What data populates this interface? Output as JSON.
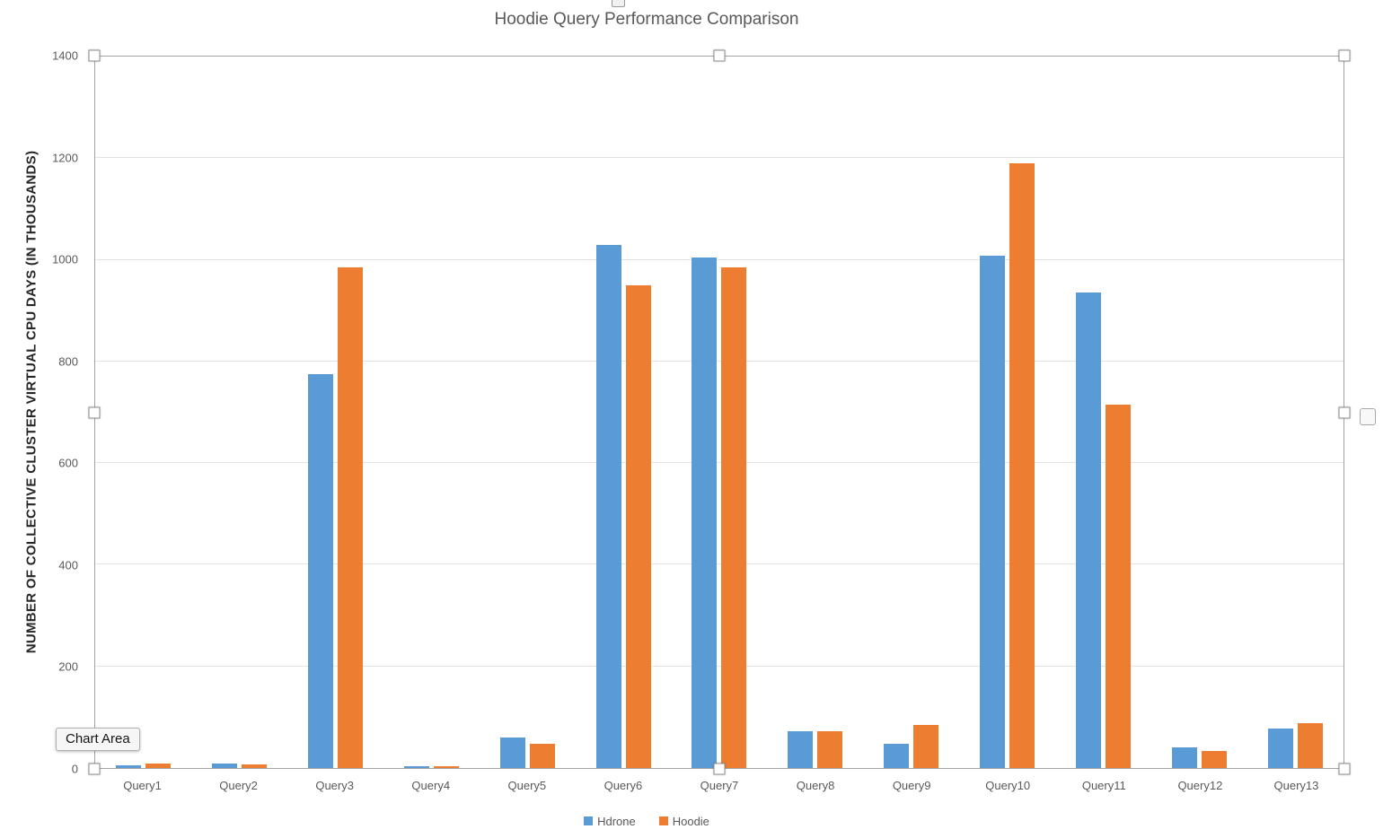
{
  "chart_data": {
    "type": "bar",
    "title": "Hoodie Query Performance Comparison",
    "xlabel": "",
    "ylabel": "NUMBER OF COLLECTIVE CLUSTER VIRTUAL CPU DAYS (IN THOUSANDS)",
    "categories": [
      "Query1",
      "Query2",
      "Query3",
      "Query4",
      "Query5",
      "Query6",
      "Query7",
      "Query8",
      "Query9",
      "Query10",
      "Query11",
      "Query12",
      "Query13"
    ],
    "series": [
      {
        "name": "Hdrone",
        "color": "#5B9BD5",
        "values": [
          5,
          8,
          775,
          3,
          60,
          1030,
          1005,
          72,
          48,
          1008,
          935,
          40,
          78
        ]
      },
      {
        "name": "Hoodie",
        "color": "#ED7D31",
        "values": [
          8,
          7,
          985,
          4,
          48,
          950,
          985,
          72,
          85,
          1190,
          715,
          33,
          88
        ]
      }
    ],
    "ylim": [
      0,
      1400
    ],
    "yticks": [
      0,
      200,
      400,
      600,
      800,
      1000,
      1200,
      1400
    ],
    "grid": true,
    "legend_position": "bottom"
  },
  "ui": {
    "tooltip": "Chart Area"
  }
}
